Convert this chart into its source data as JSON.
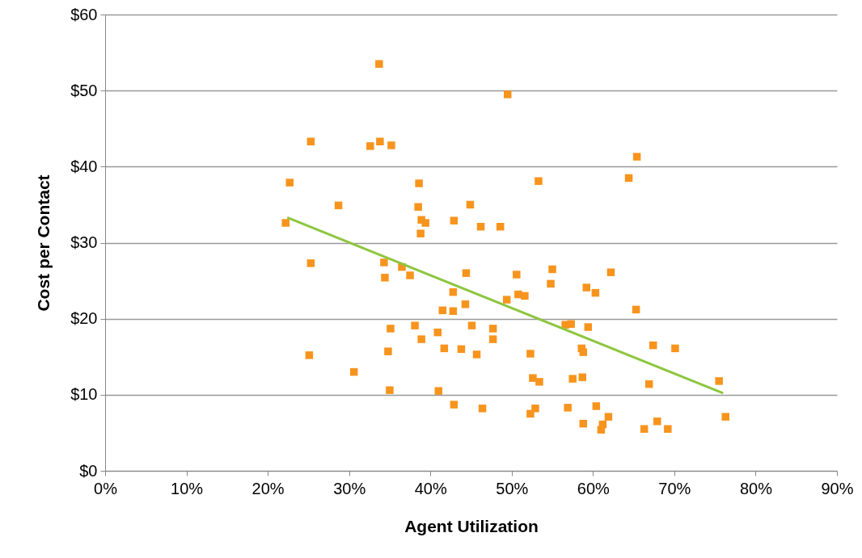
{
  "chart_data": {
    "type": "scatter",
    "xlabel": "Agent Utilization",
    "ylabel": "Cost per Contact",
    "xlim": [
      0,
      90
    ],
    "ylim": [
      0,
      60
    ],
    "xticks": [
      {
        "value": 0,
        "label": "0%"
      },
      {
        "value": 10,
        "label": "10%"
      },
      {
        "value": 20,
        "label": "20%"
      },
      {
        "value": 30,
        "label": "30%"
      },
      {
        "value": 40,
        "label": "40%"
      },
      {
        "value": 50,
        "label": "50%"
      },
      {
        "value": 60,
        "label": "60%"
      },
      {
        "value": 70,
        "label": "70%"
      },
      {
        "value": 80,
        "label": "80%"
      },
      {
        "value": 90,
        "label": "90%"
      }
    ],
    "yticks": [
      {
        "value": 0,
        "label": "$0"
      },
      {
        "value": 10,
        "label": "$10"
      },
      {
        "value": 20,
        "label": "$20"
      },
      {
        "value": 30,
        "label": "$30"
      },
      {
        "value": 40,
        "label": "$40"
      },
      {
        "value": 50,
        "label": "$50"
      },
      {
        "value": 60,
        "label": "$60"
      }
    ],
    "grid": "y",
    "marker": "square",
    "series": [
      {
        "color": "#f7941d",
        "x": [
          22.2,
          22.7,
          25.3,
          25.3,
          25.1,
          28.7,
          30.6,
          33.7,
          33.8,
          32.6,
          35.2,
          34.3,
          34.4,
          35.1,
          34.8,
          35.0,
          36.5,
          37.5,
          38.6,
          38.5,
          38.9,
          39.4,
          38.8,
          38.1,
          38.9,
          40.9,
          41.5,
          41.7,
          41.0,
          42.9,
          42.8,
          42.8,
          42.9,
          43.8,
          44.4,
          44.3,
          44.9,
          45.1,
          45.7,
          46.2,
          46.4,
          47.7,
          47.7,
          48.6,
          49.5,
          49.4,
          50.6,
          50.8,
          51.6,
          53.3,
          52.3,
          52.6,
          53.4,
          52.9,
          52.3,
          55.0,
          54.8,
          56.6,
          57.3,
          57.5,
          56.9,
          58.7,
          58.6,
          58.8,
          59.2,
          59.4,
          58.8,
          60.3,
          60.4,
          61.2,
          61.0,
          61.9,
          62.2,
          64.4,
          65.4,
          65.3,
          66.3,
          66.9,
          67.4,
          67.9,
          69.2,
          70.1,
          75.5,
          76.3
        ],
        "values": [
          32.6,
          37.9,
          43.3,
          27.3,
          15.2,
          34.9,
          13.0,
          53.5,
          43.3,
          42.7,
          42.8,
          27.4,
          25.4,
          18.7,
          15.7,
          10.6,
          26.8,
          25.7,
          37.8,
          34.7,
          33.0,
          32.6,
          31.2,
          19.1,
          17.3,
          18.2,
          21.1,
          16.1,
          10.5,
          32.9,
          23.5,
          21.0,
          8.7,
          16.0,
          26.0,
          21.9,
          35.0,
          19.1,
          15.3,
          32.1,
          8.2,
          18.7,
          17.3,
          32.1,
          49.5,
          22.5,
          25.8,
          23.2,
          23.0,
          38.1,
          15.4,
          12.2,
          11.7,
          8.2,
          7.5,
          26.5,
          24.6,
          19.2,
          19.3,
          12.1,
          8.3,
          12.3,
          16.1,
          15.6,
          24.1,
          18.9,
          6.2,
          23.4,
          8.5,
          6.1,
          5.4,
          7.1,
          26.1,
          38.5,
          41.3,
          21.2,
          5.5,
          11.4,
          16.5,
          6.5,
          5.5,
          16.1,
          11.8,
          7.1
        ]
      },
      {
        "type": "line",
        "marker": "none",
        "color": "#8dc63f",
        "x": [
          22.4,
          76.0
        ],
        "values": [
          33.3,
          10.2
        ]
      }
    ]
  }
}
